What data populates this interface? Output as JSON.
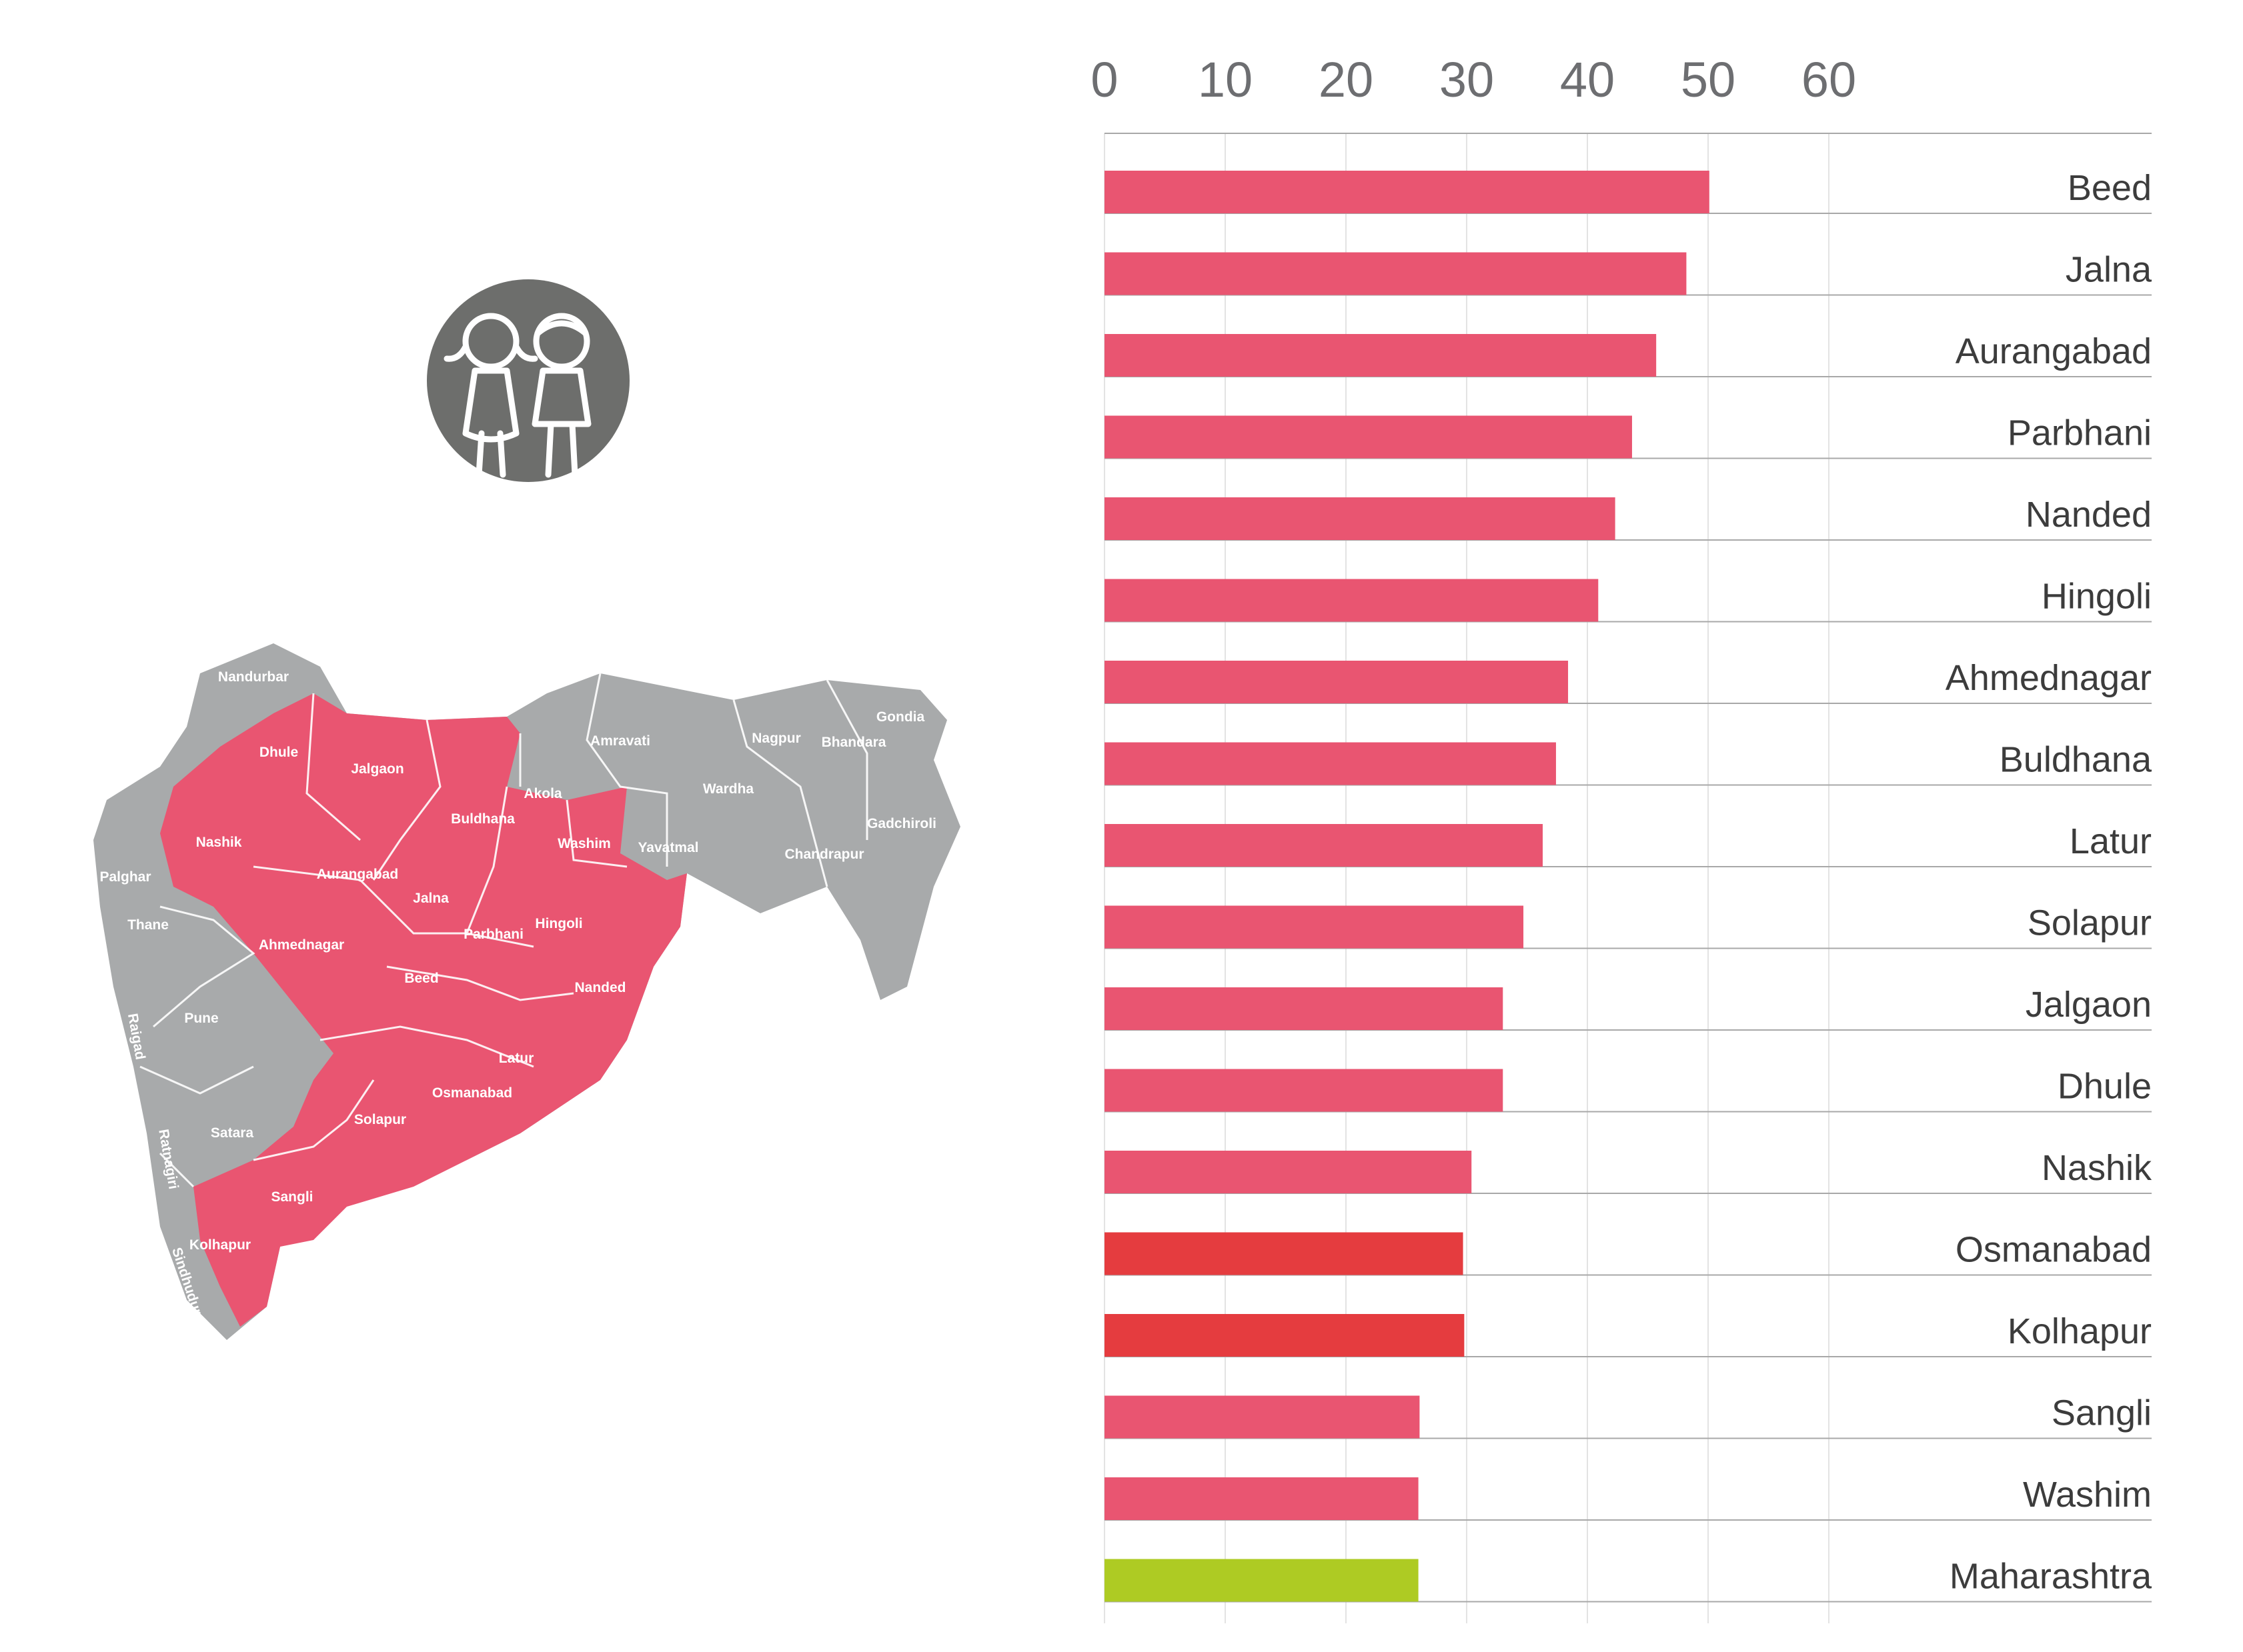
{
  "colors": {
    "bar_default": "#e95571",
    "bar_highlight": "#e53c3f",
    "bar_state": "#aecb23",
    "map_highlight": "#e95571",
    "map_other": "#a8aaab",
    "grid": "#e3e3e3",
    "separator": "#a8a8a8",
    "icon_circle": "#6d6e6c"
  },
  "icon": {
    "name": "children-icon"
  },
  "map": {
    "highlighted_districts": [
      "Nashik",
      "Dhule",
      "Jalgaon",
      "Buldhana",
      "Washim",
      "Aurangabad",
      "Jalna",
      "Parbhani",
      "Hingoli",
      "Ahmednagar",
      "Beed",
      "Nanded",
      "Latur",
      "Osmanabad",
      "Solapur",
      "Sangli",
      "Kolhapur"
    ],
    "other_districts": [
      "Nandurbar",
      "Amravati",
      "Nagpur",
      "Gondia",
      "Bhandara",
      "Wardha",
      "Akola",
      "Yavatmal",
      "Chandrapur",
      "Gadchiroli",
      "Palghar",
      "Thane",
      "Pune",
      "Raigad",
      "Satara",
      "Ratnagiri",
      "Sindhudurg"
    ]
  },
  "chart_data": {
    "type": "bar",
    "orientation": "horizontal",
    "xlim": [
      0,
      60
    ],
    "xticks": [
      "0",
      "10",
      "20",
      "30",
      "40",
      "50",
      "60"
    ],
    "grid": true,
    "categories": [
      "Beed",
      "Jalna",
      "Aurangabad",
      "Parbhani",
      "Nanded",
      "Hingoli",
      "Ahmednagar",
      "Buldhana",
      "Latur",
      "Solapur",
      "Jalgaon",
      "Dhule",
      "Nashik",
      "Osmanabad",
      "Kolhapur",
      "Sangli",
      "Washim",
      "Maharashtra"
    ],
    "values": [
      50.1,
      48.2,
      45.7,
      43.7,
      42.3,
      40.9,
      38.4,
      37.4,
      36.3,
      34.7,
      33.0,
      33.0,
      30.4,
      29.7,
      29.8,
      26.1,
      26.0,
      26.0
    ],
    "bar_color_keys": [
      "bar_default",
      "bar_default",
      "bar_default",
      "bar_default",
      "bar_default",
      "bar_default",
      "bar_default",
      "bar_default",
      "bar_default",
      "bar_default",
      "bar_default",
      "bar_default",
      "bar_default",
      "bar_highlight",
      "bar_highlight",
      "bar_default",
      "bar_default",
      "bar_state"
    ]
  }
}
